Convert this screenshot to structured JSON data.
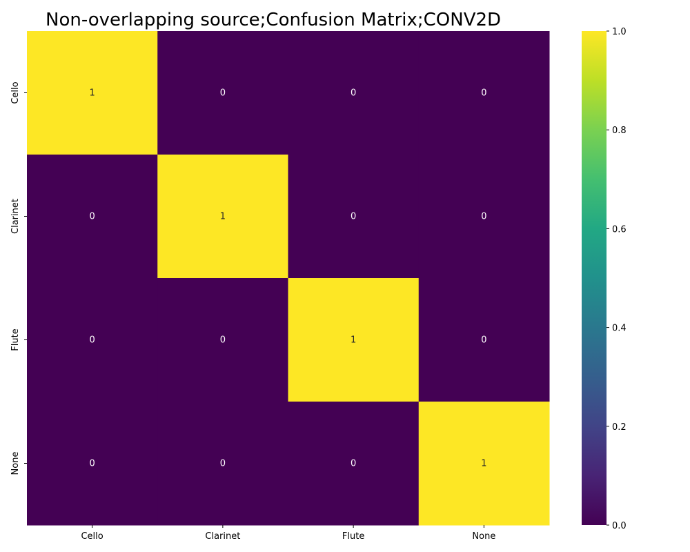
{
  "chart_data": {
    "type": "heatmap",
    "title": "Non-overlapping source;Confusion Matrix;CONV2D",
    "xlabel": "",
    "ylabel": "",
    "x_categories": [
      "Cello",
      "Clarinet",
      "Flute",
      "None"
    ],
    "y_categories": [
      "Cello",
      "Clarinet",
      "Flute",
      "None"
    ],
    "values": [
      [
        1,
        0,
        0,
        0
      ],
      [
        0,
        1,
        0,
        0
      ],
      [
        0,
        0,
        1,
        0
      ],
      [
        0,
        0,
        0,
        1
      ]
    ],
    "annotations": true,
    "colormap": "viridis",
    "colorbar": {
      "vmin": 0.0,
      "vmax": 1.0,
      "ticks": [
        "0.0",
        "0.2",
        "0.4",
        "0.6",
        "0.8",
        "1.0"
      ]
    },
    "colors": {
      "low": "#440154",
      "high": "#fde725"
    }
  }
}
